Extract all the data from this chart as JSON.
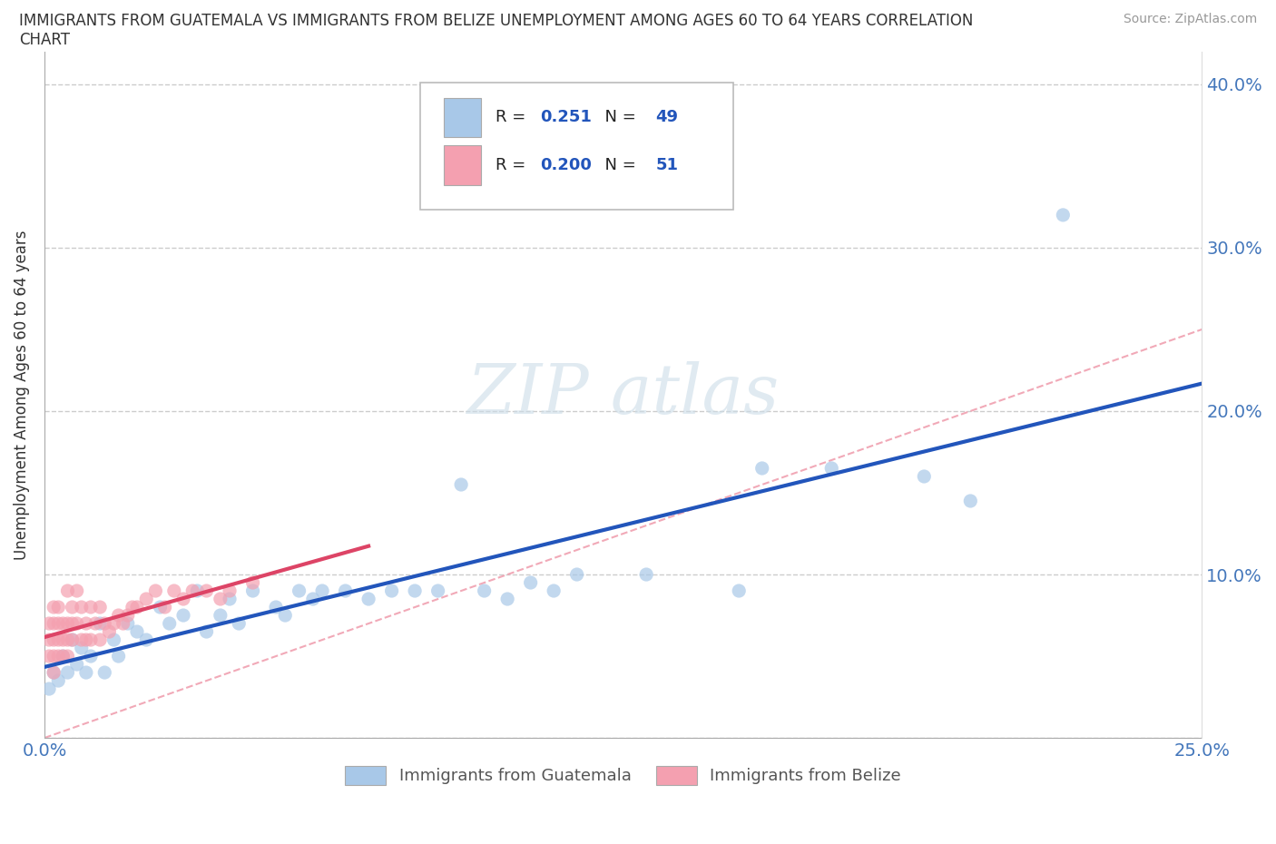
{
  "title_line1": "IMMIGRANTS FROM GUATEMALA VS IMMIGRANTS FROM BELIZE UNEMPLOYMENT AMONG AGES 60 TO 64 YEARS CORRELATION",
  "title_line2": "CHART",
  "source": "Source: ZipAtlas.com",
  "ylabel": "Unemployment Among Ages 60 to 64 years",
  "xlim": [
    0.0,
    0.25
  ],
  "ylim": [
    0.0,
    0.42
  ],
  "r_guatemala": 0.251,
  "n_guatemala": 49,
  "r_belize": 0.2,
  "n_belize": 51,
  "color_guatemala": "#a8c8e8",
  "color_belize": "#f4a0b0",
  "color_line_guatemala": "#2255bb",
  "color_line_belize": "#dd4466",
  "color_diagonal": "#f0a0b0",
  "watermark_color": "#ccdde8",
  "guatemala_x": [
    0.001,
    0.002,
    0.003,
    0.004,
    0.005,
    0.006,
    0.007,
    0.008,
    0.009,
    0.01,
    0.012,
    0.013,
    0.015,
    0.016,
    0.018,
    0.02,
    0.022,
    0.025,
    0.027,
    0.03,
    0.033,
    0.035,
    0.038,
    0.04,
    0.042,
    0.045,
    0.05,
    0.052,
    0.055,
    0.058,
    0.06,
    0.065,
    0.07,
    0.075,
    0.08,
    0.085,
    0.09,
    0.095,
    0.1,
    0.105,
    0.11,
    0.115,
    0.13,
    0.15,
    0.155,
    0.17,
    0.19,
    0.2,
    0.22
  ],
  "guatemala_y": [
    0.03,
    0.04,
    0.035,
    0.05,
    0.04,
    0.06,
    0.045,
    0.055,
    0.04,
    0.05,
    0.07,
    0.04,
    0.06,
    0.05,
    0.07,
    0.065,
    0.06,
    0.08,
    0.07,
    0.075,
    0.09,
    0.065,
    0.075,
    0.085,
    0.07,
    0.09,
    0.08,
    0.075,
    0.09,
    0.085,
    0.09,
    0.09,
    0.085,
    0.09,
    0.09,
    0.09,
    0.155,
    0.09,
    0.085,
    0.095,
    0.09,
    0.1,
    0.1,
    0.09,
    0.165,
    0.165,
    0.16,
    0.145,
    0.32
  ],
  "belize_x": [
    0.001,
    0.001,
    0.001,
    0.002,
    0.002,
    0.002,
    0.002,
    0.002,
    0.003,
    0.003,
    0.003,
    0.003,
    0.004,
    0.004,
    0.004,
    0.005,
    0.005,
    0.005,
    0.005,
    0.006,
    0.006,
    0.006,
    0.007,
    0.007,
    0.008,
    0.008,
    0.009,
    0.009,
    0.01,
    0.01,
    0.011,
    0.012,
    0.012,
    0.013,
    0.014,
    0.015,
    0.016,
    0.017,
    0.018,
    0.019,
    0.02,
    0.022,
    0.024,
    0.026,
    0.028,
    0.03,
    0.032,
    0.035,
    0.038,
    0.04,
    0.045
  ],
  "belize_y": [
    0.05,
    0.06,
    0.07,
    0.04,
    0.05,
    0.06,
    0.07,
    0.08,
    0.05,
    0.06,
    0.07,
    0.08,
    0.05,
    0.06,
    0.07,
    0.05,
    0.06,
    0.07,
    0.09,
    0.06,
    0.07,
    0.08,
    0.07,
    0.09,
    0.06,
    0.08,
    0.06,
    0.07,
    0.06,
    0.08,
    0.07,
    0.06,
    0.08,
    0.07,
    0.065,
    0.07,
    0.075,
    0.07,
    0.075,
    0.08,
    0.08,
    0.085,
    0.09,
    0.08,
    0.09,
    0.085,
    0.09,
    0.09,
    0.085,
    0.09,
    0.095
  ]
}
